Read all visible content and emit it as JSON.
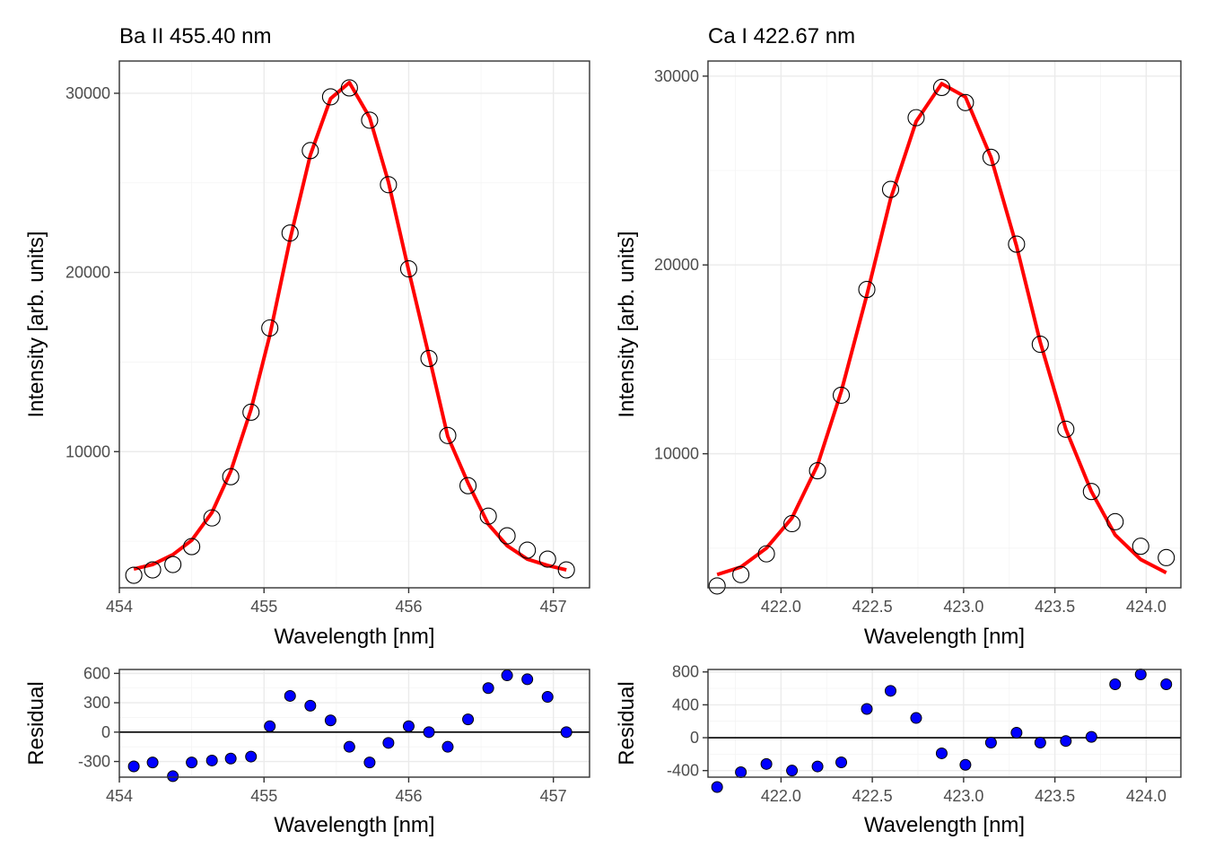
{
  "colors": {
    "fit_line": "#ff0000",
    "observed_point_stroke": "#000000",
    "residual_point_fill": "#0000ff",
    "residual_point_stroke": "#000000"
  },
  "chart_data": [
    {
      "id": "ba-main",
      "type": "scatter",
      "title": "Ba II 455.40 nm",
      "xlabel": "Wavelength [nm]",
      "ylabel": "Intensity [arb. units]",
      "xlim": [
        454.0,
        457.25
      ],
      "ylim": [
        2400,
        31800
      ],
      "xticks": [
        454,
        455,
        456,
        457
      ],
      "xtick_labels": [
        "454",
        "455",
        "456",
        "457"
      ],
      "yticks": [
        10000,
        20000,
        30000
      ],
      "ytick_labels": [
        "10000",
        "20000",
        "30000"
      ],
      "grid": true,
      "series": [
        {
          "kind": "points",
          "x": [
            454.1,
            454.23,
            454.37,
            454.5,
            454.64,
            454.77,
            454.91,
            455.04,
            455.18,
            455.32,
            455.46,
            455.59,
            455.73,
            455.86,
            456.0,
            456.14,
            456.27,
            456.41,
            456.55,
            456.68,
            456.82,
            456.96,
            457.09
          ],
          "y": [
            3100,
            3400,
            3700,
            4700,
            6300,
            8600,
            12200,
            16900,
            22200,
            26800,
            29800,
            30300,
            28500,
            24900,
            20200,
            15200,
            10900,
            8100,
            6400,
            5300,
            4500,
            4000,
            3400
          ]
        },
        {
          "kind": "line",
          "x": [
            454.1,
            454.23,
            454.37,
            454.5,
            454.64,
            454.77,
            454.91,
            455.04,
            455.18,
            455.32,
            455.46,
            455.59,
            455.73,
            455.86,
            456.0,
            456.14,
            456.27,
            456.41,
            456.55,
            456.68,
            456.82,
            456.96,
            457.09
          ],
          "y": [
            3450,
            3700,
            4250,
            5050,
            6600,
            8900,
            12350,
            16500,
            21850,
            26550,
            29700,
            30600,
            28650,
            25050,
            20100,
            15350,
            10850,
            8250,
            5950,
            4750,
            4000,
            3650,
            3400
          ]
        }
      ]
    },
    {
      "id": "ca-main",
      "type": "scatter",
      "title": "Ca I 422.67 nm",
      "xlabel": "Wavelength [nm]",
      "ylabel": "Intensity [arb. units]",
      "xlim": [
        421.6,
        424.19
      ],
      "ylim": [
        2900,
        30800
      ],
      "xticks": [
        422.0,
        422.5,
        423.0,
        423.5,
        424.0
      ],
      "xtick_labels": [
        "422.0",
        "422.5",
        "423.0",
        "423.5",
        "424.0"
      ],
      "yticks": [
        10000,
        20000,
        30000
      ],
      "ytick_labels": [
        "10000",
        "20000",
        "30000"
      ],
      "grid": true,
      "series": [
        {
          "kind": "points",
          "x": [
            421.65,
            421.78,
            421.92,
            422.06,
            422.2,
            422.33,
            422.47,
            422.6,
            422.74,
            422.88,
            423.01,
            423.15,
            423.29,
            423.42,
            423.56,
            423.7,
            423.83,
            423.97,
            424.11
          ],
          "y": [
            3000,
            3600,
            4700,
            6300,
            9100,
            13100,
            18700,
            24000,
            27800,
            29400,
            28600,
            25700,
            21100,
            15800,
            11300,
            8000,
            6400,
            5100,
            4500
          ]
        },
        {
          "kind": "line",
          "x": [
            421.65,
            421.78,
            421.92,
            422.06,
            422.2,
            422.33,
            422.47,
            422.6,
            422.74,
            422.88,
            423.01,
            423.15,
            423.29,
            423.42,
            423.56,
            423.7,
            423.83,
            423.97,
            424.11
          ],
          "y": [
            3600,
            4000,
            5000,
            6600,
            9400,
            13300,
            18400,
            23500,
            27600,
            29600,
            28900,
            25700,
            21000,
            15900,
            11300,
            8000,
            5700,
            4400,
            3700
          ]
        }
      ]
    },
    {
      "id": "ba-residual",
      "type": "scatter",
      "xlabel": "Wavelength [nm]",
      "ylabel": "Residual",
      "xlim": [
        454.0,
        457.25
      ],
      "ylim": [
        -460,
        640
      ],
      "xticks": [
        454,
        455,
        456,
        457
      ],
      "xtick_labels": [
        "454",
        "455",
        "456",
        "457"
      ],
      "yticks": [
        -300,
        0,
        300,
        600
      ],
      "ytick_labels": [
        "-300",
        "0",
        "300",
        "600"
      ],
      "zero_line": true,
      "grid": true,
      "series": [
        {
          "kind": "points",
          "x": [
            454.1,
            454.23,
            454.37,
            454.5,
            454.64,
            454.77,
            454.91,
            455.04,
            455.18,
            455.32,
            455.46,
            455.59,
            455.73,
            455.86,
            456.0,
            456.14,
            456.27,
            456.41,
            456.55,
            456.68,
            456.82,
            456.96,
            457.09
          ],
          "y": [
            -350,
            -310,
            -450,
            -310,
            -290,
            -270,
            -250,
            60,
            370,
            270,
            120,
            -150,
            -310,
            -110,
            60,
            0,
            -150,
            130,
            450,
            580,
            540,
            360,
            0
          ]
        }
      ]
    },
    {
      "id": "ca-residual",
      "type": "scatter",
      "xlabel": "Wavelength [nm]",
      "ylabel": "Residual",
      "xlim": [
        421.6,
        424.19
      ],
      "ylim": [
        -480,
        830
      ],
      "xticks": [
        422.0,
        422.5,
        423.0,
        423.5,
        424.0
      ],
      "xtick_labels": [
        "422.0",
        "422.5",
        "423.0",
        "423.5",
        "424.0"
      ],
      "yticks": [
        -400,
        0,
        400,
        800
      ],
      "ytick_labels": [
        "-400",
        "0",
        "400",
        "800"
      ],
      "zero_line": true,
      "grid": true,
      "series": [
        {
          "kind": "points",
          "x": [
            421.65,
            421.78,
            421.92,
            422.06,
            422.2,
            422.33,
            422.47,
            422.6,
            422.74,
            422.88,
            423.01,
            423.15,
            423.29,
            423.42,
            423.56,
            423.7,
            423.83,
            423.97,
            424.11
          ],
          "y": [
            -600,
            -420,
            -320,
            -400,
            -350,
            -300,
            350,
            570,
            240,
            -190,
            -330,
            -60,
            60,
            -60,
            -40,
            10,
            650,
            770,
            650
          ]
        }
      ]
    }
  ]
}
